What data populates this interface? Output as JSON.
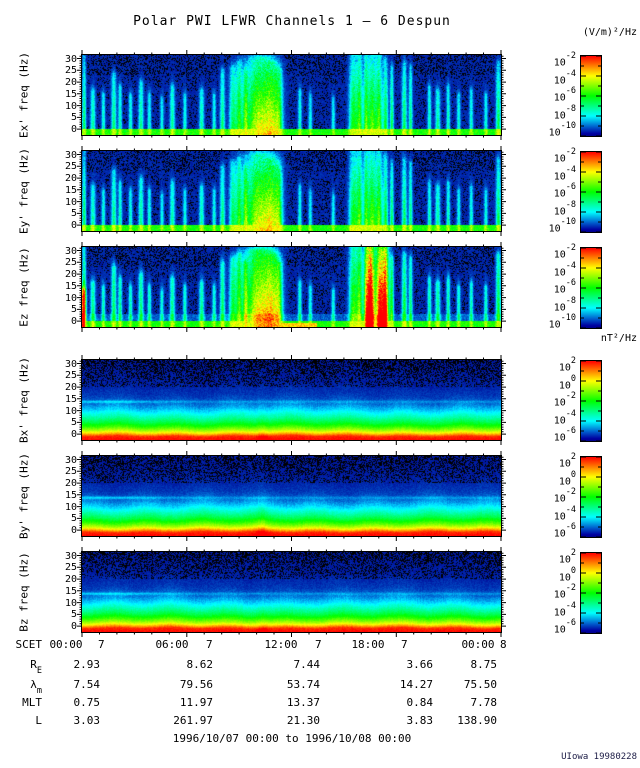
{
  "title": "Polar PWI LFWR Channels 1 — 6 Despun",
  "top_unit": "(V/m)²/Hz",
  "mid_unit": "nT²/Hz",
  "caption": "1996/10/07 00:00 to 1996/10/08 00:00",
  "credit": "UIowa 19980228",
  "chart_data": {
    "type": "heatmap",
    "subtype": "spectrogram-stack",
    "title": "Polar PWI LFWR Channels 1 — 6 Despun",
    "time_start": "1996/10/07 00:00",
    "time_end": "1996/10/08 00:00",
    "x_tick_labels": [
      "00:00",
      "06:00",
      "12:00",
      "18:00",
      "00:00"
    ],
    "x_tick_days": [
      "7",
      "7",
      "7",
      "7",
      "8"
    ],
    "x_minor_ticks_per_hour": 1,
    "y_unit": "Hz",
    "y_range_hz": [
      0,
      32
    ],
    "y_tick_values": [
      30,
      25,
      20,
      15,
      10,
      5,
      0
    ],
    "y_tick_labels": [
      "30",
      "25",
      "20",
      "15",
      "10",
      "5",
      "0"
    ],
    "colorbars": {
      "E": {
        "unit": "(V/m)²/Hz",
        "base": "10",
        "tick_exponents": [
          "-2",
          "-4",
          "-6",
          "-8",
          "-10"
        ]
      },
      "B": {
        "unit": "nT²/Hz",
        "base": "10",
        "tick_exponents": [
          "2",
          "0",
          "-2",
          "-4",
          "-6"
        ]
      }
    },
    "panels": [
      {
        "id": "ex",
        "ylabel": "Ex' freq (Hz)",
        "kind": "E",
        "colorbar": "E",
        "seed": 11
      },
      {
        "id": "ey",
        "ylabel": "Ey' freq (Hz)",
        "kind": "E",
        "colorbar": "E",
        "seed": 23
      },
      {
        "id": "ez",
        "ylabel": "Ez freq (Hz)",
        "kind": "Ez",
        "colorbar": "E",
        "seed": 37
      },
      {
        "id": "bx",
        "ylabel": "Bx' freq (Hz)",
        "kind": "B",
        "colorbar": "B",
        "seed": 51
      },
      {
        "id": "by",
        "ylabel": "By' freq (Hz)",
        "kind": "B",
        "colorbar": "B",
        "seed": 67
      },
      {
        "id": "bz",
        "ylabel": "Bz freq (Hz)",
        "kind": "B",
        "colorbar": "B",
        "seed": 83
      }
    ],
    "features": {
      "E_events": [
        [
          0.004,
          0.003,
          1.0,
          0.5
        ],
        [
          0.025,
          0.004,
          0.55,
          0.4
        ],
        [
          0.05,
          0.003,
          0.5,
          0.35
        ],
        [
          0.075,
          0.004,
          0.75,
          0.45
        ],
        [
          0.09,
          0.003,
          0.6,
          0.4
        ],
        [
          0.115,
          0.003,
          0.5,
          0.35
        ],
        [
          0.14,
          0.004,
          0.65,
          0.42
        ],
        [
          0.16,
          0.003,
          0.5,
          0.35
        ],
        [
          0.19,
          0.003,
          0.45,
          0.3
        ],
        [
          0.215,
          0.004,
          0.6,
          0.4
        ],
        [
          0.245,
          0.003,
          0.5,
          0.33
        ],
        [
          0.285,
          0.004,
          0.55,
          0.38
        ],
        [
          0.315,
          0.003,
          0.5,
          0.33
        ],
        [
          0.335,
          0.004,
          0.8,
          0.45
        ],
        [
          0.36,
          0.006,
          0.85,
          0.5
        ],
        [
          0.375,
          0.005,
          0.9,
          0.55
        ],
        [
          0.39,
          0.004,
          0.8,
          0.5
        ],
        [
          0.41,
          0.018,
          0.95,
          0.5
        ],
        [
          0.435,
          0.02,
          0.97,
          0.55
        ],
        [
          0.455,
          0.012,
          0.9,
          0.5
        ],
        [
          0.47,
          0.006,
          0.8,
          0.45
        ],
        [
          0.52,
          0.003,
          0.55,
          0.35
        ],
        [
          0.545,
          0.003,
          0.5,
          0.3
        ],
        [
          0.6,
          0.003,
          0.45,
          0.3
        ],
        [
          0.648,
          0.007,
          1.0,
          0.6
        ],
        [
          0.663,
          0.005,
          1.0,
          0.65
        ],
        [
          0.678,
          0.004,
          1.0,
          0.6
        ],
        [
          0.693,
          0.008,
          1.0,
          0.7
        ],
        [
          0.71,
          0.005,
          1.0,
          0.65
        ],
        [
          0.725,
          0.004,
          0.95,
          0.55
        ],
        [
          0.74,
          0.003,
          0.85,
          0.5
        ],
        [
          0.77,
          0.004,
          0.9,
          0.5
        ],
        [
          0.785,
          0.003,
          0.85,
          0.45
        ],
        [
          0.83,
          0.003,
          0.6,
          0.38
        ],
        [
          0.85,
          0.004,
          0.55,
          0.4
        ],
        [
          0.875,
          0.003,
          0.6,
          0.38
        ],
        [
          0.9,
          0.003,
          0.5,
          0.33
        ],
        [
          0.93,
          0.003,
          0.55,
          0.35
        ],
        [
          0.965,
          0.003,
          0.5,
          0.33
        ],
        [
          0.995,
          0.004,
          0.9,
          0.5
        ]
      ],
      "Ez_extra_events": [
        [
          0.002,
          0.004,
          0.45,
          0.95
        ],
        [
          0.687,
          0.006,
          1.0,
          0.9
        ],
        [
          0.72,
          0.009,
          1.0,
          0.95
        ]
      ],
      "Ez_bottom_hot_range": [
        0.47,
        0.56
      ],
      "B_profile": [
        [
          0,
          1.0
        ],
        [
          1.5,
          0.96
        ],
        [
          2.5,
          0.82
        ],
        [
          3.5,
          0.7
        ],
        [
          5,
          0.57
        ],
        [
          7,
          0.44
        ],
        [
          9,
          0.34
        ],
        [
          12,
          0.21
        ],
        [
          15,
          0.12
        ],
        [
          18,
          0.075
        ],
        [
          22,
          0.05
        ],
        [
          26,
          0.04
        ],
        [
          32,
          0.03
        ]
      ],
      "B_line_hz": 15.3,
      "B_streak_t": 0.43
    },
    "scet": {
      "label": "SCET",
      "times": [
        "00:00",
        "06:00",
        "12:00",
        "18:00",
        "00:00"
      ],
      "days": [
        "7",
        "7",
        "7",
        "7",
        "8"
      ]
    },
    "ephemeris_rows": [
      {
        "label": "R",
        "sub": "E",
        "values": [
          "2.93",
          "8.62",
          "7.44",
          "3.66",
          "8.75"
        ]
      },
      {
        "label": "λ",
        "sub": "m",
        "values": [
          "7.54",
          "79.56",
          "53.74",
          "14.27",
          "75.50"
        ]
      },
      {
        "label": "MLT",
        "sub": "",
        "values": [
          "0.75",
          "11.97",
          "13.37",
          "0.84",
          "7.78"
        ]
      },
      {
        "label": "L",
        "sub": "",
        "values": [
          "3.03",
          "261.97",
          "21.30",
          "3.83",
          "138.90"
        ]
      }
    ]
  }
}
